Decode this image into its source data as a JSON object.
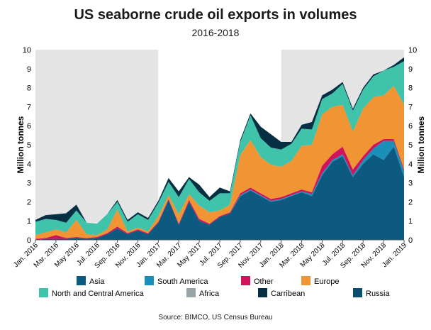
{
  "chart_data": {
    "type": "area",
    "stacked": true,
    "title": "US seaborne crude oil exports in volumes",
    "subtitle": "2016-2018",
    "ylabel_left": "Million tonnes",
    "ylabel_right": "Million tonnes",
    "ylim": [
      0,
      10
    ],
    "yticks": [
      0,
      1,
      2,
      3,
      4,
      5,
      6,
      7,
      8,
      9,
      10
    ],
    "grid": false,
    "legend_position": "bottom",
    "x_tick_labels": [
      "Jan. 2016",
      "Mar. 2016",
      "May 2016",
      "Jul. 2016",
      "Sep. 2016",
      "Nov. 2016",
      "Jan. 2017",
      "Mar. 2017",
      "May 2017",
      "Jul. 2017",
      "Sep. 2017",
      "Nov. 2017",
      "Jan. 2018",
      "Mar. 2018",
      "May 2018",
      "Jul. 2018",
      "Sep. 2018",
      "Nov. 2018",
      "Jan. 2019"
    ],
    "months": [
      "Jan. 2016",
      "Feb. 2016",
      "Mar. 2016",
      "Apr. 2016",
      "May 2016",
      "Jun. 2016",
      "Jul. 2016",
      "Aug. 2016",
      "Sep. 2016",
      "Oct. 2016",
      "Nov. 2016",
      "Dec. 2016",
      "Jan. 2017",
      "Feb. 2017",
      "Mar. 2017",
      "Apr. 2017",
      "May 2017",
      "Jun. 2017",
      "Jul. 2017",
      "Aug. 2017",
      "Sep. 2017",
      "Oct. 2017",
      "Nov. 2017",
      "Dec. 2017",
      "Jan. 2018",
      "Feb. 2018",
      "Mar. 2018",
      "Apr. 2018",
      "May 2018",
      "Jun. 2018",
      "Jul. 2018",
      "Aug. 2018",
      "Sep. 2018",
      "Oct. 2018",
      "Nov. 2018",
      "Dec. 2018",
      "Jan. 2019"
    ],
    "shaded_years": [
      "2016",
      "2018"
    ],
    "series": [
      {
        "name": "Asia",
        "color": "#0d5a80",
        "values": [
          0.0,
          0.05,
          0.05,
          0.05,
          0.1,
          0.05,
          0.1,
          0.3,
          0.6,
          0.3,
          0.5,
          0.3,
          0.9,
          2.1,
          0.8,
          2.0,
          1.0,
          0.8,
          1.2,
          1.4,
          2.3,
          2.6,
          2.3,
          2.0,
          2.1,
          2.3,
          2.5,
          2.3,
          3.4,
          4.1,
          4.4,
          3.3,
          4.0,
          4.5,
          4.2,
          4.9,
          3.3
        ]
      },
      {
        "name": "South America",
        "color": "#1a8fb9",
        "values": [
          0,
          0,
          0,
          0,
          0,
          0,
          0,
          0,
          0,
          0,
          0,
          0,
          0,
          0,
          0,
          0,
          0,
          0,
          0,
          0,
          0.05,
          0.05,
          0.05,
          0.05,
          0.05,
          0.05,
          0.05,
          0.1,
          0.1,
          0.1,
          0.1,
          0.1,
          0.2,
          0.3,
          1.0,
          0.3,
          0.3
        ]
      },
      {
        "name": "Other",
        "color": "#d1135c",
        "values": [
          0.05,
          0.05,
          0.2,
          0.05,
          0.05,
          0.05,
          0.05,
          0.05,
          0.1,
          0.05,
          0.05,
          0.05,
          0.05,
          0.05,
          0.05,
          0.1,
          0.1,
          0.05,
          0.05,
          0.05,
          0.1,
          0.1,
          0.1,
          0.1,
          0.1,
          0.1,
          0.1,
          0.1,
          0.4,
          0.3,
          0.4,
          0.3,
          0.2,
          0.2,
          0.1,
          0.1,
          0.1
        ]
      },
      {
        "name": "Europe",
        "color": "#f19434",
        "values": [
          0.2,
          0.3,
          0.3,
          0.3,
          0.9,
          0.2,
          0.1,
          0.2,
          0.9,
          0.1,
          0.1,
          0.1,
          0.3,
          0.2,
          0.5,
          0.3,
          0.7,
          0.6,
          0.3,
          0.4,
          2.0,
          2.5,
          1.9,
          1.8,
          1.6,
          1.7,
          2.3,
          2.5,
          2.7,
          2.5,
          2.2,
          2.0,
          2.5,
          2.5,
          2.3,
          2.8,
          3.4
        ]
      },
      {
        "name": "North and Central America",
        "color": "#3fc3aa",
        "values": [
          0.7,
          0.7,
          0.5,
          0.5,
          0.5,
          0.6,
          0.6,
          0.8,
          0.4,
          0.5,
          0.7,
          0.6,
          0.7,
          0.7,
          0.9,
          0.8,
          0.7,
          0.6,
          0.9,
          0.6,
          0.7,
          1.3,
          1.0,
          0.9,
          0.9,
          0.9,
          0.9,
          0.8,
          0.8,
          0.7,
          1.1,
          1.1,
          1.0,
          1.1,
          1.3,
          1.0,
          2.3
        ]
      },
      {
        "name": "Africa",
        "color": "#98a4a8",
        "values": [
          0,
          0,
          0,
          0,
          0,
          0,
          0,
          0,
          0,
          0,
          0,
          0,
          0,
          0,
          0,
          0,
          0,
          0,
          0,
          0,
          0,
          0,
          0,
          0,
          0,
          0,
          0,
          0,
          0,
          0,
          0,
          0,
          0,
          0,
          0,
          0,
          0
        ]
      },
      {
        "name": "Carribean",
        "color": "#062f44",
        "values": [
          0.1,
          0.2,
          0.3,
          0.5,
          0.3,
          0.0,
          0.0,
          0.0,
          0.1,
          0.1,
          0.1,
          0.1,
          0.1,
          0.2,
          0.3,
          0.1,
          0.4,
          0.2,
          0.3,
          0.1,
          0.1,
          0.1,
          0.6,
          0.7,
          0.4,
          0.1,
          0.2,
          0.4,
          0.2,
          0.2,
          0.1,
          0.1,
          0.1,
          0.1,
          0.0,
          0.1,
          0.2
        ]
      },
      {
        "name": "Russia",
        "color": "#0a4d6f",
        "values": [
          0,
          0,
          0,
          0,
          0,
          0,
          0,
          0,
          0,
          0,
          0,
          0,
          0,
          0,
          0,
          0,
          0,
          0,
          0,
          0,
          0,
          0,
          0,
          0,
          0,
          0,
          0,
          0,
          0,
          0,
          0,
          0,
          0,
          0,
          0,
          0,
          0
        ]
      }
    ],
    "source": "Source: BIMCO, US Census Bureau"
  }
}
